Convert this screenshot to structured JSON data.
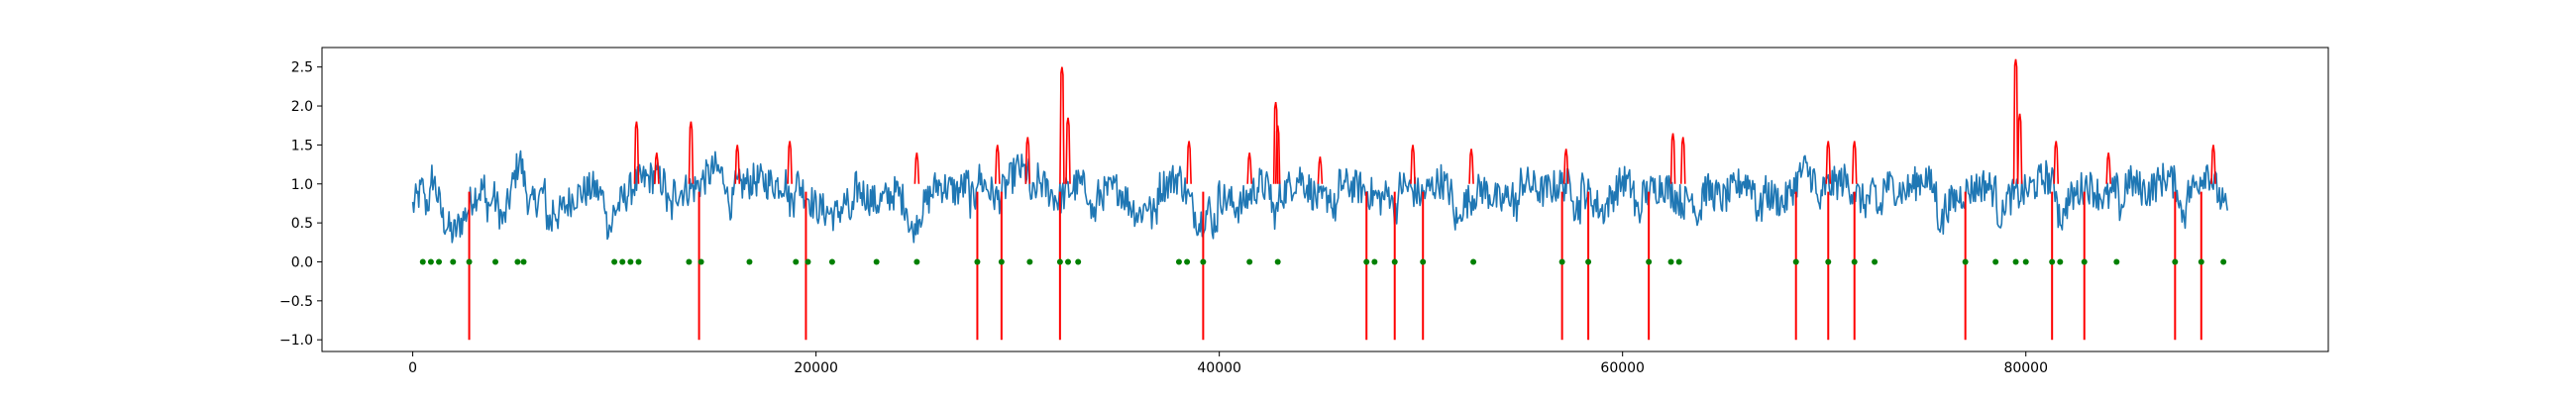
{
  "chart_data": {
    "type": "line",
    "title": "",
    "xlabel": "",
    "ylabel": "",
    "xlim": [
      -4500,
      95000
    ],
    "ylim": [
      -1.15,
      2.75
    ],
    "x_ticks": [
      0,
      20000,
      40000,
      60000,
      80000
    ],
    "x_tick_labels": [
      "0",
      "20000",
      "40000",
      "60000",
      "80000"
    ],
    "y_ticks": [
      -1.0,
      -0.5,
      0.0,
      0.5,
      1.0,
      1.5,
      2.0,
      2.5
    ],
    "y_tick_labels": [
      "−1.0",
      "−0.5",
      "0.0",
      "0.5",
      "1.0",
      "1.5",
      "2.0",
      "2.5"
    ],
    "grid": false,
    "legend": "none",
    "series": [
      {
        "kind": "line",
        "color": "#1f77b4",
        "x_range": [
          0,
          90000
        ],
        "summary": "noisy periodic signal, mean about 0.85, range about 0.3 to 1.4",
        "x": [
          0,
          500,
          1000,
          1500,
          2000,
          2600,
          3000,
          3800,
          4500,
          5300,
          5800,
          6500,
          7200,
          8000,
          9000,
          10000,
          11000,
          12000,
          13000,
          14000,
          15000,
          16000,
          17000,
          18000,
          19000,
          20000,
          21000,
          22000,
          23000,
          24000,
          25000,
          26000,
          27000,
          28000,
          29000,
          30000,
          31000,
          32000,
          33000,
          34000,
          35000,
          36000,
          37000,
          38000,
          39000,
          40000,
          41000,
          42000,
          43000,
          44000,
          45000,
          46000,
          47000,
          48000,
          49000,
          50000,
          51000,
          52000,
          53000,
          54000,
          55000,
          56000,
          57000,
          58000,
          59000,
          60000,
          61000,
          62000,
          63000,
          64000,
          65000,
          66000,
          67000,
          68000,
          69000,
          70000,
          71000,
          72000,
          73000,
          74000,
          75000,
          76000,
          77000,
          78000,
          79000,
          80000,
          81000,
          82000,
          83000,
          84000,
          85000,
          86000,
          87000,
          88000,
          89000,
          90000
        ],
        "y": [
          0.7,
          0.95,
          1.1,
          0.55,
          0.35,
          0.6,
          0.85,
          1.0,
          0.5,
          1.35,
          0.7,
          0.9,
          0.6,
          0.85,
          0.95,
          0.65,
          1.0,
          1.1,
          0.9,
          0.95,
          1.2,
          0.95,
          1.05,
          1.0,
          1.05,
          0.7,
          0.6,
          0.95,
          0.75,
          0.9,
          0.55,
          1.0,
          0.9,
          1.1,
          0.8,
          1.2,
          1.05,
          0.8,
          1.0,
          0.85,
          0.95,
          0.6,
          0.95,
          1.1,
          0.5,
          0.85,
          0.7,
          1.0,
          0.85,
          1.1,
          0.75,
          1.0,
          0.95,
          0.8,
          1.0,
          0.85,
          1.05,
          0.7,
          0.95,
          0.75,
          1.05,
          0.9,
          1.0,
          0.95,
          0.65,
          1.05,
          0.85,
          1.0,
          0.75,
          0.95,
          0.8,
          1.05,
          0.9,
          0.75,
          1.2,
          0.95,
          1.05,
          0.75,
          1.0,
          0.9,
          1.1,
          0.7,
          0.9,
          1.0,
          0.8,
          0.9,
          1.1,
          0.75,
          1.0,
          0.8,
          1.05,
          0.9,
          1.1,
          0.85,
          1.2,
          0.6
        ]
      },
      {
        "kind": "red-segments",
        "color": "#ff0000",
        "description": "red vertical lines down to -1.0 and red spikes above the blue signal",
        "drops": [
          2800,
          14200,
          19500,
          28000,
          29200,
          32100,
          39200,
          47300,
          48700,
          50100,
          57000,
          58300,
          61300,
          68600,
          70200,
          71500,
          77000,
          81300,
          82900,
          87400,
          88700
        ],
        "spikes": [
          {
            "x": 11100,
            "y": 1.8
          },
          {
            "x": 12100,
            "y": 1.4
          },
          {
            "x": 13800,
            "y": 1.8
          },
          {
            "x": 16100,
            "y": 1.5
          },
          {
            "x": 18700,
            "y": 1.55
          },
          {
            "x": 25000,
            "y": 1.4
          },
          {
            "x": 29000,
            "y": 1.5
          },
          {
            "x": 30500,
            "y": 1.6
          },
          {
            "x": 32200,
            "y": 2.5
          },
          {
            "x": 32500,
            "y": 1.85
          },
          {
            "x": 38500,
            "y": 1.55
          },
          {
            "x": 41500,
            "y": 1.4
          },
          {
            "x": 42800,
            "y": 2.05
          },
          {
            "x": 42900,
            "y": 1.75
          },
          {
            "x": 45000,
            "y": 1.35
          },
          {
            "x": 49600,
            "y": 1.5
          },
          {
            "x": 52500,
            "y": 1.45
          },
          {
            "x": 57200,
            "y": 1.45
          },
          {
            "x": 62500,
            "y": 1.65
          },
          {
            "x": 63000,
            "y": 1.6
          },
          {
            "x": 70200,
            "y": 1.55
          },
          {
            "x": 71500,
            "y": 1.55
          },
          {
            "x": 79500,
            "y": 2.6
          },
          {
            "x": 79700,
            "y": 1.9
          },
          {
            "x": 81500,
            "y": 1.55
          },
          {
            "x": 84100,
            "y": 1.4
          },
          {
            "x": 89300,
            "y": 1.5
          }
        ]
      },
      {
        "kind": "scatter",
        "color": "#008000",
        "y_value": 0.0,
        "x": [
          500,
          900,
          1300,
          2000,
          2800,
          4100,
          5200,
          5500,
          10000,
          10400,
          10800,
          11200,
          13700,
          14300,
          16700,
          19000,
          19600,
          20800,
          23000,
          25000,
          28000,
          29200,
          30600,
          32100,
          32500,
          33000,
          38000,
          38400,
          39200,
          41500,
          42900,
          47300,
          47700,
          48700,
          50100,
          52600,
          57000,
          58300,
          61300,
          62400,
          62800,
          68600,
          70200,
          71500,
          72500,
          77000,
          78500,
          79500,
          80000,
          81300,
          81700,
          82900,
          84500,
          87400,
          88700,
          89800
        ]
      }
    ]
  }
}
